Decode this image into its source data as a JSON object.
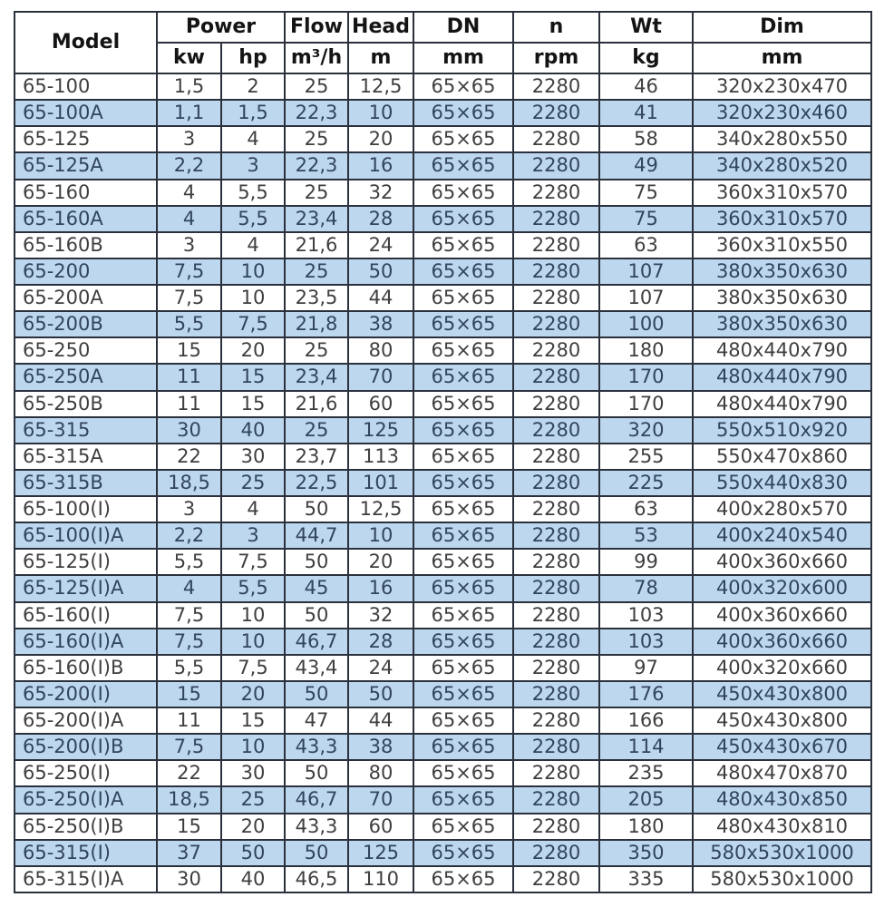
{
  "colors": {
    "stripe": "#bdd7ee",
    "border": "#2b313c",
    "row_text": "#3f3f3f",
    "stripe_text": "#31455e",
    "header_text": "#141414",
    "page_bg": "#ffffff"
  },
  "table": {
    "header_row1": [
      "Model",
      "Power",
      "Flow",
      "Head",
      "DN",
      "n",
      "Wt",
      "Dim"
    ],
    "header_row2": [
      "kw",
      "hp",
      "m³/h",
      "m",
      "mm",
      "rpm",
      "kg",
      "mm"
    ],
    "col_keys": [
      "model",
      "kw",
      "hp",
      "flow",
      "head",
      "dn",
      "rpm",
      "wt",
      "dim"
    ],
    "rows": [
      [
        "65-100",
        "1,5",
        "2",
        "25",
        "12,5",
        "65×65",
        "2280",
        "46",
        "320x230x470"
      ],
      [
        "65-100A",
        "1,1",
        "1,5",
        "22,3",
        "10",
        "65×65",
        "2280",
        "41",
        "320x230x460"
      ],
      [
        "65-125",
        "3",
        "4",
        "25",
        "20",
        "65×65",
        "2280",
        "58",
        "340x280x550"
      ],
      [
        "65-125A",
        "2,2",
        "3",
        "22,3",
        "16",
        "65×65",
        "2280",
        "49",
        "340x280x520"
      ],
      [
        "65-160",
        "4",
        "5,5",
        "25",
        "32",
        "65×65",
        "2280",
        "75",
        "360x310x570"
      ],
      [
        "65-160A",
        "4",
        "5,5",
        "23,4",
        "28",
        "65×65",
        "2280",
        "75",
        "360x310x570"
      ],
      [
        "65-160B",
        "3",
        "4",
        "21,6",
        "24",
        "65×65",
        "2280",
        "63",
        "360x310x550"
      ],
      [
        "65-200",
        "7,5",
        "10",
        "25",
        "50",
        "65×65",
        "2280",
        "107",
        "380x350x630"
      ],
      [
        "65-200A",
        "7,5",
        "10",
        "23,5",
        "44",
        "65×65",
        "2280",
        "107",
        "380x350x630"
      ],
      [
        "65-200B",
        "5,5",
        "7,5",
        "21,8",
        "38",
        "65×65",
        "2280",
        "100",
        "380x350x630"
      ],
      [
        "65-250",
        "15",
        "20",
        "25",
        "80",
        "65×65",
        "2280",
        "180",
        "480x440x790"
      ],
      [
        "65-250A",
        "11",
        "15",
        "23,4",
        "70",
        "65×65",
        "2280",
        "170",
        "480x440x790"
      ],
      [
        "65-250B",
        "11",
        "15",
        "21,6",
        "60",
        "65×65",
        "2280",
        "170",
        "480x440x790"
      ],
      [
        "65-315",
        "30",
        "40",
        "25",
        "125",
        "65×65",
        "2280",
        "320",
        "550x510x920"
      ],
      [
        "65-315A",
        "22",
        "30",
        "23,7",
        "113",
        "65×65",
        "2280",
        "255",
        "550x470x860"
      ],
      [
        "65-315B",
        "18,5",
        "25",
        "22,5",
        "101",
        "65×65",
        "2280",
        "225",
        "550x440x830"
      ],
      [
        "65-100(I)",
        "3",
        "4",
        "50",
        "12,5",
        "65×65",
        "2280",
        "63",
        "400x280x570"
      ],
      [
        "65-100(I)A",
        "2,2",
        "3",
        "44,7",
        "10",
        "65×65",
        "2280",
        "53",
        "400x240x540"
      ],
      [
        "65-125(I)",
        "5,5",
        "7,5",
        "50",
        "20",
        "65×65",
        "2280",
        "99",
        "400x360x660"
      ],
      [
        "65-125(I)A",
        "4",
        "5,5",
        "45",
        "16",
        "65×65",
        "2280",
        "78",
        "400x320x600"
      ],
      [
        "65-160(I)",
        "7,5",
        "10",
        "50",
        "32",
        "65×65",
        "2280",
        "103",
        "400x360x660"
      ],
      [
        "65-160(I)A",
        "7,5",
        "10",
        "46,7",
        "28",
        "65×65",
        "2280",
        "103",
        "400x360x660"
      ],
      [
        "65-160(I)B",
        "5,5",
        "7,5",
        "43,4",
        "24",
        "65×65",
        "2280",
        "97",
        "400x320x660"
      ],
      [
        "65-200(I)",
        "15",
        "20",
        "50",
        "50",
        "65×65",
        "2280",
        "176",
        "450x430x800"
      ],
      [
        "65-200(I)A",
        "11",
        "15",
        "47",
        "44",
        "65×65",
        "2280",
        "166",
        "450x430x800"
      ],
      [
        "65-200(I)B",
        "7,5",
        "10",
        "43,3",
        "38",
        "65×65",
        "2280",
        "114",
        "450x430x670"
      ],
      [
        "65-250(I)",
        "22",
        "30",
        "50",
        "80",
        "65×65",
        "2280",
        "235",
        "480x470x870"
      ],
      [
        "65-250(I)A",
        "18,5",
        "25",
        "46,7",
        "70",
        "65×65",
        "2280",
        "205",
        "480x430x850"
      ],
      [
        "65-250(I)B",
        "15",
        "20",
        "43,3",
        "60",
        "65×65",
        "2280",
        "180",
        "480x430x810"
      ],
      [
        "65-315(I)",
        "37",
        "50",
        "50",
        "125",
        "65×65",
        "2280",
        "350",
        "580x530x1000"
      ],
      [
        "65-315(I)A",
        "30",
        "40",
        "46,5",
        "110",
        "65×65",
        "2280",
        "335",
        "580x530x1000"
      ]
    ]
  }
}
